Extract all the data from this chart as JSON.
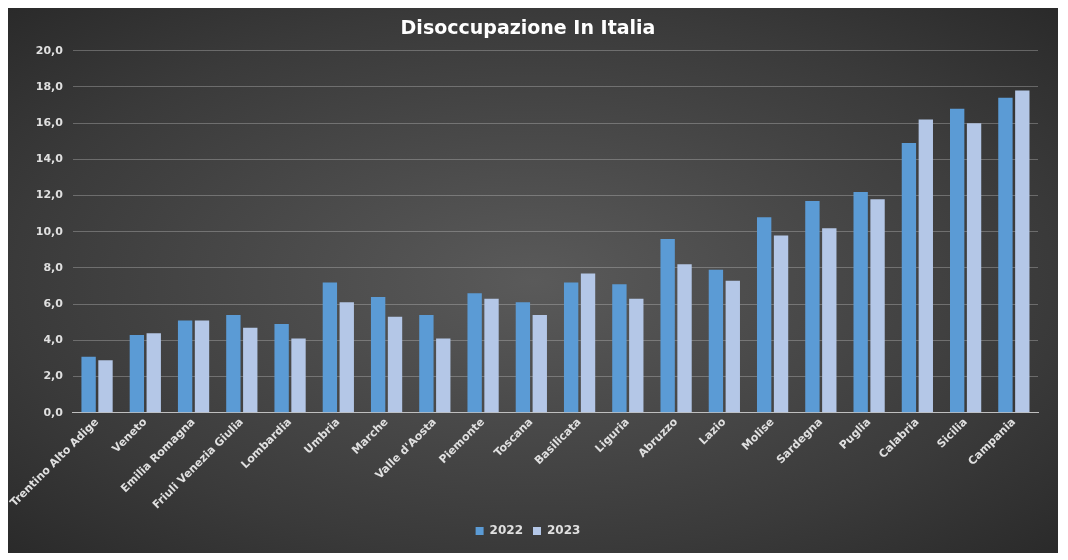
{
  "chart_data": {
    "type": "bar",
    "title": "Disoccupazione In Italia",
    "categories": [
      "Trentino Alto Adige",
      "Veneto",
      "Emilia Romagna",
      "Friuli Venezia Giulia",
      "Lombardia",
      "Umbria",
      "Marche",
      "Valle d'Aosta",
      "Piemonte",
      "Toscana",
      "Basilicata",
      "Liguria",
      "Abruzzo",
      "Lazio",
      "Molise",
      "Sardegna",
      "Puglia",
      "Calabria",
      "Sicilia",
      "Campania"
    ],
    "series": [
      {
        "name": "2022",
        "color": "#5b9bd5",
        "values": [
          3.1,
          4.3,
          5.1,
          5.4,
          4.9,
          7.2,
          6.4,
          5.4,
          6.6,
          6.1,
          7.2,
          7.1,
          9.6,
          7.9,
          10.8,
          11.7,
          12.2,
          14.9,
          16.8,
          17.4
        ]
      },
      {
        "name": "2023",
        "color": "#b4c7e7",
        "values": [
          2.9,
          4.4,
          5.1,
          4.7,
          4.1,
          6.1,
          5.3,
          4.1,
          6.3,
          5.4,
          7.7,
          6.3,
          8.2,
          7.3,
          9.8,
          10.2,
          11.8,
          16.2,
          16.0,
          17.8
        ]
      }
    ],
    "ylim": [
      0,
      20
    ],
    "yticks": [
      {
        "value": 0,
        "label": "0,0"
      },
      {
        "value": 2,
        "label": "2,0"
      },
      {
        "value": 4,
        "label": "4,0"
      },
      {
        "value": 6,
        "label": "6,0"
      },
      {
        "value": 8,
        "label": "8,0"
      },
      {
        "value": 10,
        "label": "10,0"
      },
      {
        "value": 12,
        "label": "12,0"
      },
      {
        "value": 14,
        "label": "14,0"
      },
      {
        "value": 16,
        "label": "16,0"
      },
      {
        "value": 18,
        "label": "18,0"
      },
      {
        "value": 20,
        "label": "20,0"
      }
    ],
    "grid": "y",
    "legend": "bottom"
  }
}
